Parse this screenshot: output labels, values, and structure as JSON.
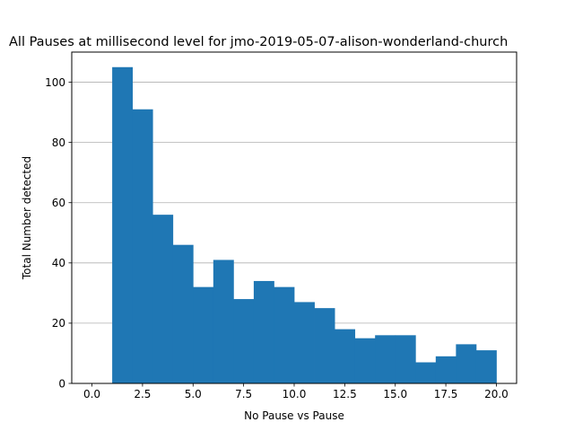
{
  "chart_data": {
    "type": "bar",
    "title": "All Pauses at millisecond level for jmo-2019-05-07-alison-wonderland-church",
    "xlabel": "No Pause vs Pause",
    "ylabel": "Total Number detected",
    "bin_edges": [
      1,
      2,
      3,
      4,
      5,
      6,
      7,
      8,
      9,
      10,
      11,
      12,
      13,
      14,
      15,
      16,
      17,
      18,
      19,
      20
    ],
    "values": [
      105,
      91,
      56,
      46,
      32,
      41,
      28,
      34,
      32,
      27,
      25,
      18,
      15,
      16,
      16,
      7,
      9,
      13,
      11
    ],
    "xlim": [
      -1.0,
      21.0
    ],
    "ylim": [
      0,
      110
    ],
    "x_ticks": [
      0.0,
      2.5,
      5.0,
      7.5,
      10.0,
      12.5,
      15.0,
      17.5,
      20.0
    ],
    "x_tick_labels": [
      "0.0",
      "2.5",
      "5.0",
      "7.5",
      "10.0",
      "12.5",
      "15.0",
      "17.5",
      "20.0"
    ],
    "y_ticks": [
      0,
      20,
      40,
      60,
      80,
      100
    ],
    "y_tick_labels": [
      "0",
      "20",
      "40",
      "60",
      "80",
      "100"
    ],
    "grid": "y",
    "colors": {
      "bar": "#1f77b4",
      "grid": "#b0b0b0",
      "axis": "#000000"
    }
  }
}
